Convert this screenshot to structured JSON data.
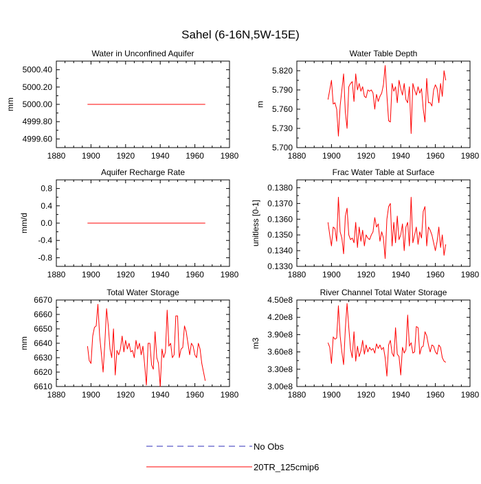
{
  "title": "Sahel (6-16N,5W-15E)",
  "colors": {
    "model": "#ff0000",
    "obs": "#2e2eb8"
  },
  "legend": {
    "placement": "bottom-center",
    "entries": [
      {
        "label": "No Obs",
        "style": "dashed",
        "color": "#2e2eb8"
      },
      {
        "label": "20TR_125cmip6",
        "style": "solid",
        "color": "#ff0000"
      }
    ]
  },
  "chart_data": [
    {
      "type": "line",
      "title": "Water in Unconfined Aquifer",
      "ylabel": "mm",
      "xlim": [
        1880,
        1980
      ],
      "xticks": [
        1880,
        1900,
        1920,
        1940,
        1960,
        1980
      ],
      "ylim": [
        4999.5,
        5000.5
      ],
      "yticks": [
        4999.6,
        4999.8,
        5000.0,
        5000.2,
        5000.4
      ],
      "ytick_labels": [
        "4999.60",
        "4999.80",
        "5000.00",
        "5000.20",
        "5000.40"
      ],
      "series": [
        {
          "x_start": 1898,
          "x_step": 1,
          "values": [
            5000,
            5000,
            5000,
            5000,
            5000,
            5000,
            5000,
            5000,
            5000,
            5000,
            5000,
            5000,
            5000,
            5000,
            5000,
            5000,
            5000,
            5000,
            5000,
            5000,
            5000,
            5000,
            5000,
            5000,
            5000,
            5000,
            5000,
            5000,
            5000,
            5000,
            5000,
            5000,
            5000,
            5000,
            5000,
            5000,
            5000,
            5000,
            5000,
            5000,
            5000,
            5000,
            5000,
            5000,
            5000,
            5000,
            5000,
            5000,
            5000,
            5000,
            5000,
            5000,
            5000,
            5000,
            5000,
            5000,
            5000,
            5000,
            5000,
            5000,
            5000,
            5000,
            5000,
            5000,
            5000,
            5000,
            5000,
            5000,
            5000
          ]
        }
      ]
    },
    {
      "type": "line",
      "title": "Water Table Depth",
      "ylabel": "m",
      "xlim": [
        1880,
        1980
      ],
      "xticks": [
        1880,
        1900,
        1920,
        1940,
        1960,
        1980
      ],
      "ylim": [
        5.7,
        5.835
      ],
      "yticks": [
        5.7,
        5.73,
        5.76,
        5.79,
        5.82
      ],
      "ytick_labels": [
        "5.700",
        "5.730",
        "5.760",
        "5.790",
        "5.820"
      ],
      "series": [
        {
          "x_start": 1898,
          "x_step": 1,
          "values": [
            5.775,
            5.79,
            5.805,
            5.768,
            5.77,
            5.76,
            5.718,
            5.765,
            5.79,
            5.815,
            5.755,
            5.73,
            5.795,
            5.8,
            5.803,
            5.772,
            5.815,
            5.79,
            5.8,
            5.788,
            5.795,
            5.78,
            5.778,
            5.79,
            5.788,
            5.79,
            5.785,
            5.76,
            5.783,
            5.772,
            5.78,
            5.785,
            5.798,
            5.828,
            5.782,
            5.742,
            5.74,
            5.8,
            5.788,
            5.795,
            5.77,
            5.805,
            5.792,
            5.782,
            5.8,
            5.775,
            5.77,
            5.795,
            5.722,
            5.8,
            5.79,
            5.782,
            5.795,
            5.785,
            5.792,
            5.76,
            5.74,
            5.808,
            5.77,
            5.77,
            5.765,
            5.79,
            5.798,
            5.792,
            5.77,
            5.8,
            5.78,
            5.82,
            5.805
          ]
        }
      ]
    },
    {
      "type": "line",
      "title": "Aquifer Recharge Rate",
      "ylabel": "mm/d",
      "xlim": [
        1880,
        1980
      ],
      "xticks": [
        1880,
        1900,
        1920,
        1940,
        1960,
        1980
      ],
      "ylim": [
        -1.0,
        1.0
      ],
      "yticks": [
        -0.8,
        -0.4,
        0.0,
        0.4,
        0.8
      ],
      "ytick_labels": [
        "-0.8",
        "-0.4",
        "0.0",
        "0.4",
        "0.8"
      ],
      "series": [
        {
          "x_start": 1898,
          "x_step": 1,
          "values": [
            0,
            0,
            0,
            0,
            0,
            0,
            0,
            0,
            0,
            0,
            0,
            0,
            0,
            0,
            0,
            0,
            0,
            0,
            0,
            0,
            0,
            0,
            0,
            0,
            0,
            0,
            0,
            0,
            0,
            0,
            0,
            0,
            0,
            0,
            0,
            0,
            0,
            0,
            0,
            0,
            0,
            0,
            0,
            0,
            0,
            0,
            0,
            0,
            0,
            0,
            0,
            0,
            0,
            0,
            0,
            0,
            0,
            0,
            0,
            0,
            0,
            0,
            0,
            0,
            0,
            0,
            0,
            0,
            0
          ]
        }
      ]
    },
    {
      "type": "line",
      "title": "Frac Water Table at Surface",
      "ylabel": "unitless [0-1]",
      "xlim": [
        1880,
        1980
      ],
      "xticks": [
        1880,
        1900,
        1920,
        1940,
        1960,
        1980
      ],
      "ylim": [
        0.133,
        0.1385
      ],
      "yticks": [
        0.133,
        0.134,
        0.135,
        0.136,
        0.137,
        0.138
      ],
      "ytick_labels": [
        "0.1330",
        "0.1340",
        "0.1350",
        "0.1360",
        "0.1370",
        "0.1380"
      ],
      "series": [
        {
          "x_start": 1898,
          "x_step": 1,
          "values": [
            0.1358,
            0.135,
            0.1343,
            0.1355,
            0.1354,
            0.1346,
            0.1374,
            0.1352,
            0.1348,
            0.1338,
            0.1362,
            0.1367,
            0.135,
            0.1347,
            0.1348,
            0.1345,
            0.1358,
            0.1342,
            0.1355,
            0.1346,
            0.1353,
            0.1343,
            0.135,
            0.1348,
            0.1347,
            0.135,
            0.1352,
            0.1361,
            0.1355,
            0.1357,
            0.1346,
            0.1352,
            0.1348,
            0.1335,
            0.136,
            0.1368,
            0.137,
            0.1343,
            0.1358,
            0.1345,
            0.1362,
            0.1347,
            0.135,
            0.1357,
            0.134,
            0.1355,
            0.1358,
            0.1343,
            0.1374,
            0.1345,
            0.135,
            0.1355,
            0.1344,
            0.1352,
            0.1348,
            0.1365,
            0.1368,
            0.1343,
            0.1355,
            0.1353,
            0.135,
            0.1345,
            0.134,
            0.1346,
            0.1355,
            0.1342,
            0.135,
            0.1337,
            0.1344
          ]
        }
      ]
    },
    {
      "type": "line",
      "title": "Total Water Storage",
      "ylabel": "mm",
      "xlim": [
        1880,
        1980
      ],
      "xticks": [
        1880,
        1900,
        1920,
        1940,
        1960,
        1980
      ],
      "ylim": [
        6610,
        6670
      ],
      "yticks": [
        6610,
        6620,
        6630,
        6640,
        6650,
        6660,
        6670
      ],
      "ytick_labels": [
        "6610",
        "6620",
        "6630",
        "6640",
        "6650",
        "6660",
        "6670"
      ],
      "series": [
        {
          "x_start": 1898,
          "x_step": 1,
          "values": [
            6638,
            6628,
            6626,
            6645,
            6651,
            6652,
            6667,
            6645,
            6633,
            6620,
            6640,
            6664,
            6652,
            6636,
            6630,
            6650,
            6618,
            6635,
            6632,
            6636,
            6645,
            6634,
            6642,
            6636,
            6640,
            6634,
            6635,
            6630,
            6642,
            6636,
            6640,
            6632,
            6638,
            6625,
            6611,
            6640,
            6640,
            6625,
            6622,
            6648,
            6630,
            6626,
            6610,
            6636,
            6630,
            6634,
            6663,
            6638,
            6640,
            6630,
            6632,
            6659,
            6659,
            6630,
            6636,
            6637,
            6652,
            6648,
            6640,
            6632,
            6640,
            6638,
            6632,
            6630,
            6640,
            6636,
            6626,
            6620,
            6614
          ]
        }
      ]
    },
    {
      "type": "line",
      "title": "River Channel Total Water Storage",
      "ylabel": "m3",
      "xlim": [
        1880,
        1980
      ],
      "xticks": [
        1880,
        1900,
        1920,
        1940,
        1960,
        1980
      ],
      "ylim": [
        300000000,
        450000000
      ],
      "yticks": [
        300000000,
        330000000,
        360000000,
        390000000,
        420000000,
        450000000
      ],
      "ytick_labels": [
        "3.00e8",
        "3.30e8",
        "3.60e8",
        "3.90e8",
        "4.20e8",
        "4.50e8"
      ],
      "series": [
        {
          "x_start": 1898,
          "x_step": 1,
          "values": [
            376000000,
            368000000,
            340000000,
            386000000,
            382000000,
            384000000,
            440000000,
            388000000,
            360000000,
            338000000,
            400000000,
            444000000,
            402000000,
            365000000,
            350000000,
            395000000,
            344000000,
            370000000,
            352000000,
            362000000,
            380000000,
            356000000,
            372000000,
            360000000,
            368000000,
            363000000,
            366000000,
            358000000,
            374000000,
            366000000,
            372000000,
            364000000,
            368000000,
            350000000,
            318000000,
            372000000,
            380000000,
            358000000,
            352000000,
            402000000,
            356000000,
            352000000,
            320000000,
            368000000,
            358000000,
            364000000,
            424000000,
            370000000,
            376000000,
            358000000,
            360000000,
            404000000,
            402000000,
            356000000,
            368000000,
            370000000,
            395000000,
            388000000,
            372000000,
            360000000,
            372000000,
            370000000,
            360000000,
            356000000,
            372000000,
            368000000,
            350000000,
            344000000,
            342000000
          ]
        }
      ]
    }
  ]
}
